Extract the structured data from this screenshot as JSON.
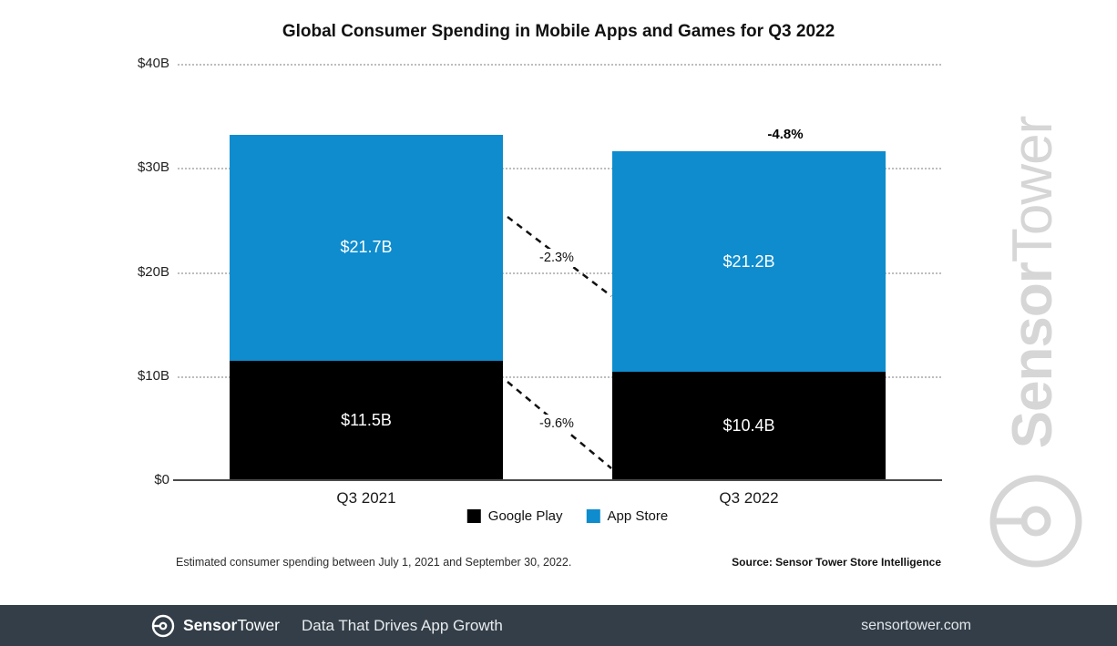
{
  "chart_data": {
    "type": "bar",
    "stacked": true,
    "title": "Global Consumer Spending in Mobile Apps and Games for Q3 2022",
    "categories": [
      "Q3 2021",
      "Q3 2022"
    ],
    "series": [
      {
        "name": "Google Play",
        "color": "#000000",
        "text_color": "#ffffff",
        "values": [
          11.5,
          10.4
        ],
        "labels": [
          "$11.5B",
          "$10.4B"
        ]
      },
      {
        "name": "App Store",
        "color": "#0e8cce",
        "text_color": "#ffffff",
        "values": [
          21.7,
          21.2
        ],
        "labels": [
          "$21.7B",
          "$21.2B"
        ]
      }
    ],
    "ylim": [
      0,
      40
    ],
    "yticks": [
      "$40B",
      "$30B",
      "$20B",
      "$10B",
      "$0"
    ],
    "grid": "dotted-horizontal",
    "legend_position": "bottom-center",
    "annotations": [
      {
        "id": "total-change",
        "text": "-4.8%",
        "refers_to": "Q3 2022 total vs Q3 2021"
      },
      {
        "id": "app-store-change",
        "text": "-2.3%",
        "refers_to": "App Store year-over-year"
      },
      {
        "id": "google-play-change",
        "text": "-9.6%",
        "refers_to": "Google Play year-over-year"
      }
    ]
  },
  "footnote": "Estimated consumer spending between July 1, 2021 and September 30, 2022.",
  "source": "Source: Sensor Tower Store Intelligence",
  "watermark": {
    "brand_bold": "Sensor",
    "brand_light": "Tower"
  },
  "footer_bar": {
    "brand_bold": "Sensor",
    "brand_light": "Tower",
    "tagline": "Data That Drives App Growth",
    "website": "sensortower.com"
  }
}
